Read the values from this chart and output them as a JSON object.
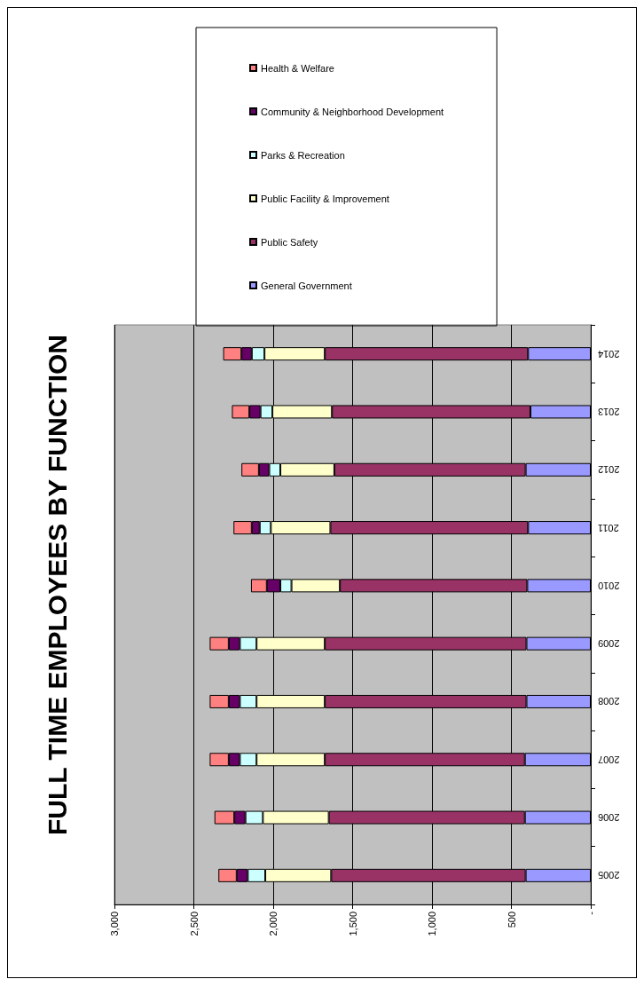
{
  "chart_data": {
    "type": "bar",
    "title": "FULL TIME EMPLOYEES BY FUNCTION",
    "stacked": true,
    "orientation": "horizontal",
    "categories": [
      "2014",
      "2013",
      "2012",
      "2011",
      "2010",
      "2009",
      "2008",
      "2007",
      "2006",
      "2005"
    ],
    "series": [
      {
        "name": "General Government",
        "color": "#9999ff",
        "values": [
          395,
          380,
          410,
          395,
          400,
          405,
          405,
          415,
          415,
          410
        ]
      },
      {
        "name": "Public Safety",
        "color": "#993366",
        "values": [
          1280,
          1250,
          1205,
          1245,
          1180,
          1270,
          1270,
          1260,
          1235,
          1225
        ]
      },
      {
        "name": "Public Facility & Improvement",
        "color": "#ffffcc",
        "values": [
          380,
          375,
          340,
          375,
          305,
          430,
          430,
          430,
          415,
          415
        ]
      },
      {
        "name": "Parks & Recreation",
        "color": "#ccffff",
        "values": [
          80,
          75,
          70,
          70,
          70,
          105,
          105,
          105,
          110,
          110
        ]
      },
      {
        "name": "Community & Neighborhood Development",
        "color": "#660066",
        "values": [
          65,
          70,
          65,
          50,
          85,
          70,
          70,
          70,
          70,
          70
        ]
      },
      {
        "name": "Health & Welfare",
        "color": "#ff8080",
        "values": [
          115,
          110,
          110,
          115,
          100,
          120,
          120,
          120,
          125,
          115
        ]
      }
    ],
    "xlim": [
      3000,
      0
    ],
    "xticks": [
      {
        "value": 0,
        "label": "-"
      },
      500,
      {
        "value": 1000,
        "label": "1,000"
      },
      {
        "value": 1500,
        "label": "1,500"
      },
      {
        "value": 2000,
        "label": "2,000"
      },
      {
        "value": 2500,
        "label": "2,500"
      },
      {
        "value": 3000,
        "label": "3,000"
      }
    ],
    "grid": "x",
    "legend": "top"
  }
}
